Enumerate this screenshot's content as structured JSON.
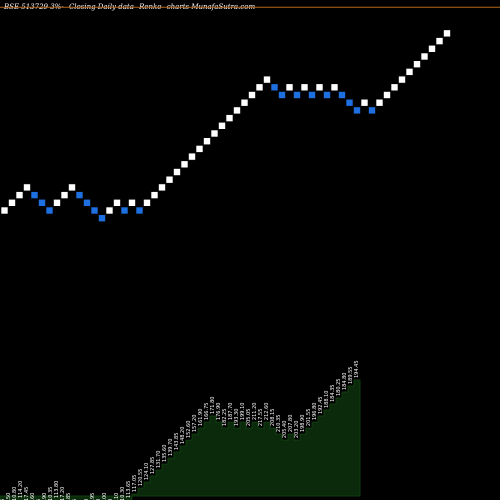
{
  "header": {
    "symbol": "BSE 513729 3%-",
    "subtitle": "Closing Daily data",
    "chart_name": "Renko",
    "site": "charts MunafaSutra.com"
  },
  "colors": {
    "background": "#000000",
    "up_brick": "#ffffff",
    "down_brick": "#1e6fe0",
    "ref_line": "#b5651d",
    "area_fill": "#0b2a0b",
    "area_stroke": "#123d12",
    "label": "#ffffff"
  },
  "chart_data": {
    "type": "renko",
    "brick_percent": 3,
    "reference_lines": [
      264,
      245
    ],
    "bricks": [
      {
        "close": 112.3,
        "dir": "up"
      },
      {
        "close": 115.67,
        "dir": "up"
      },
      {
        "close": 119.14,
        "dir": "up"
      },
      {
        "close": 122.71,
        "dir": "up"
      },
      {
        "close": 119.14,
        "dir": "down"
      },
      {
        "close": 115.67,
        "dir": "down"
      },
      {
        "close": 112.3,
        "dir": "down"
      },
      {
        "close": 115.67,
        "dir": "up"
      },
      {
        "close": 119.14,
        "dir": "up"
      },
      {
        "close": 122.71,
        "dir": "up"
      },
      {
        "close": 119.14,
        "dir": "down"
      },
      {
        "close": 115.67,
        "dir": "down"
      },
      {
        "close": 112.3,
        "dir": "down"
      },
      {
        "close": 109.03,
        "dir": "down"
      },
      {
        "close": 112.3,
        "dir": "up"
      },
      {
        "close": 115.67,
        "dir": "up"
      },
      {
        "close": 112.3,
        "dir": "down"
      },
      {
        "close": 115.67,
        "dir": "up"
      },
      {
        "close": 112.3,
        "dir": "down"
      },
      {
        "close": 115.67,
        "dir": "up"
      },
      {
        "close": 119.14,
        "dir": "up"
      },
      {
        "close": 122.71,
        "dir": "up"
      },
      {
        "close": 126.39,
        "dir": "up"
      },
      {
        "close": 130.18,
        "dir": "up"
      },
      {
        "close": 134.09,
        "dir": "up"
      },
      {
        "close": 138.11,
        "dir": "up"
      },
      {
        "close": 142.25,
        "dir": "up"
      },
      {
        "close": 146.52,
        "dir": "up"
      },
      {
        "close": 150.92,
        "dir": "up"
      },
      {
        "close": 155.45,
        "dir": "up"
      },
      {
        "close": 160.11,
        "dir": "up"
      },
      {
        "close": 164.91,
        "dir": "up"
      },
      {
        "close": 169.86,
        "dir": "up"
      },
      {
        "close": 174.96,
        "dir": "up"
      },
      {
        "close": 180.21,
        "dir": "up"
      },
      {
        "close": 185.62,
        "dir": "up"
      },
      {
        "close": 180.21,
        "dir": "down"
      },
      {
        "close": 174.96,
        "dir": "down"
      },
      {
        "close": 180.21,
        "dir": "up"
      },
      {
        "close": 174.96,
        "dir": "down"
      },
      {
        "close": 180.21,
        "dir": "up"
      },
      {
        "close": 174.96,
        "dir": "down"
      },
      {
        "close": 180.21,
        "dir": "up"
      },
      {
        "close": 174.96,
        "dir": "down"
      },
      {
        "close": 180.21,
        "dir": "up"
      },
      {
        "close": 174.96,
        "dir": "down"
      },
      {
        "close": 169.86,
        "dir": "down"
      },
      {
        "close": 164.91,
        "dir": "down"
      },
      {
        "close": 169.86,
        "dir": "up"
      },
      {
        "close": 164.91,
        "dir": "down"
      },
      {
        "close": 169.86,
        "dir": "up"
      },
      {
        "close": 174.96,
        "dir": "up"
      },
      {
        "close": 180.21,
        "dir": "up"
      },
      {
        "close": 185.62,
        "dir": "up"
      },
      {
        "close": 191.19,
        "dir": "up"
      },
      {
        "close": 196.93,
        "dir": "up"
      },
      {
        "close": 202.84,
        "dir": "up"
      },
      {
        "close": 208.93,
        "dir": "up"
      },
      {
        "close": 215.2,
        "dir": "up"
      },
      {
        "close": 221.66,
        "dir": "up"
      }
    ],
    "volume_labels": [
      "104.35",
      "107.50",
      "110.80",
      "114.20",
      "117.45",
      "113.60",
      "110.25",
      "106.90",
      "110.35",
      "113.80",
      "117.20",
      "113.85",
      "110.45",
      "107.05",
      "103.90",
      "106.95",
      "110.20",
      "107.00",
      "110.40",
      "107.10",
      "110.30",
      "113.65",
      "117.05",
      "120.55",
      "124.10",
      "127.85",
      "131.70",
      "135.60",
      "139.70",
      "143.85",
      "148.20",
      "152.60",
      "157.20",
      "161.90",
      "166.75",
      "171.80",
      "176.90",
      "182.25",
      "187.70",
      "193.30",
      "199.10",
      "205.05",
      "211.20",
      "217.55",
      "212.60",
      "208.15",
      "210.35",
      "205.40",
      "207.80",
      "203.20",
      "198.90",
      "201.55",
      "196.80",
      "192.45",
      "188.10",
      "184.35",
      "180.25",
      "184.80",
      "189.55",
      "194.45"
    ]
  }
}
